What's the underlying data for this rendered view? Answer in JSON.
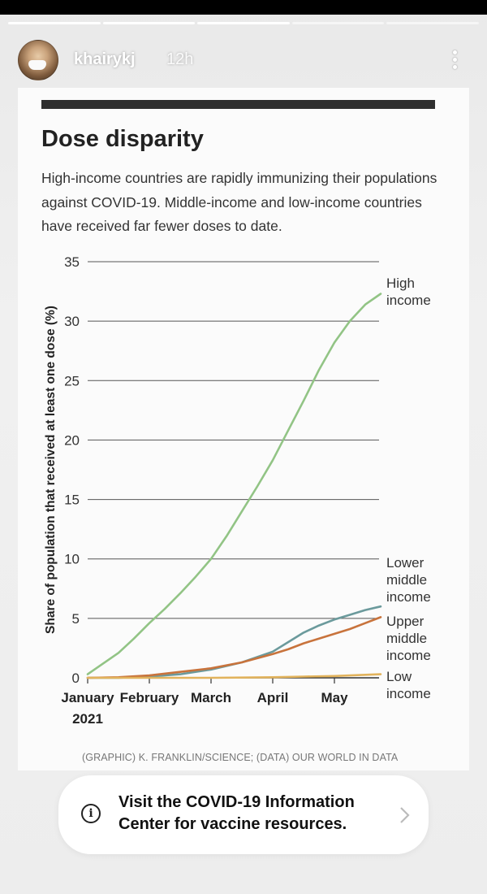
{
  "story": {
    "username": "khairykj",
    "timestamp": "12h",
    "progress_segments": 5,
    "progress_done": 3
  },
  "header_icons": {
    "avatar": "avatar",
    "more": "more-vert-icon"
  },
  "chart": {
    "title": "Dose disparity",
    "subtitle": "High-income countries are rapidly immunizing their populations against COVID-19. Middle-income and low-income countries have received far fewer doses to date.",
    "credit": "(GRAPHIC) K. FRANKLIN/SCIENCE; (DATA) OUR WORLD IN DATA"
  },
  "chart_data": {
    "type": "line",
    "title": "Dose disparity",
    "xlabel": "",
    "ylabel": "Share of population that received at least one dose (%)",
    "ylim": [
      0,
      35
    ],
    "yticks": [
      0,
      5,
      10,
      15,
      20,
      25,
      30,
      35
    ],
    "xticks": [
      {
        "month": 0,
        "label": "January",
        "label2": "2021"
      },
      {
        "month": 1,
        "label": "February",
        "label2": ""
      },
      {
        "month": 2,
        "label": "March",
        "label2": ""
      },
      {
        "month": 3,
        "label": "April",
        "label2": ""
      },
      {
        "month": 4,
        "label": "May",
        "label2": ""
      }
    ],
    "grid": true,
    "legend": "direct labels at right end of lines",
    "series": [
      {
        "name": "High income",
        "label_lines": [
          "High",
          "income"
        ],
        "color": "#92c485",
        "x": [
          0,
          0.25,
          0.5,
          0.75,
          1,
          1.25,
          1.5,
          1.75,
          2,
          2.25,
          2.5,
          2.75,
          3,
          3.25,
          3.5,
          3.75,
          4,
          4.25,
          4.5,
          4.75
        ],
        "y": [
          0.3,
          1.2,
          2.1,
          3.3,
          4.6,
          5.8,
          7.1,
          8.5,
          10.0,
          11.9,
          14.0,
          16.1,
          18.3,
          20.8,
          23.3,
          25.9,
          28.2,
          30.0,
          31.4,
          32.3
        ]
      },
      {
        "name": "Lower middle income",
        "label_lines": [
          "Lower",
          "middle",
          "income"
        ],
        "color": "#6b9a9c",
        "x": [
          0,
          0.5,
          1,
          1.5,
          2,
          2.5,
          3,
          3.25,
          3.5,
          3.75,
          4,
          4.25,
          4.5,
          4.75
        ],
        "y": [
          0,
          0,
          0.1,
          0.3,
          0.7,
          1.3,
          2.2,
          3.0,
          3.8,
          4.4,
          4.9,
          5.3,
          5.7,
          6.0
        ]
      },
      {
        "name": "Upper middle income",
        "label_lines": [
          "Upper",
          "middle",
          "income"
        ],
        "color": "#c8733c",
        "x": [
          0,
          0.5,
          1,
          1.5,
          2,
          2.5,
          3,
          3.25,
          3.5,
          3.75,
          4,
          4.25,
          4.5,
          4.75
        ],
        "y": [
          0,
          0.05,
          0.2,
          0.5,
          0.8,
          1.3,
          2.0,
          2.4,
          2.9,
          3.3,
          3.7,
          4.1,
          4.6,
          5.1
        ]
      },
      {
        "name": "Low income",
        "label_lines": [
          "Low",
          "income"
        ],
        "color": "#e2b35c",
        "x": [
          0,
          1,
          2,
          3,
          3.5,
          4,
          4.5,
          4.75
        ],
        "y": [
          0,
          0,
          0,
          0.05,
          0.1,
          0.15,
          0.25,
          0.3
        ]
      }
    ]
  },
  "info_banner": {
    "text": "Visit the COVID-19 Information Center for vaccine resources.",
    "icon": "info-icon",
    "chevron": "chevron-right-icon"
  }
}
